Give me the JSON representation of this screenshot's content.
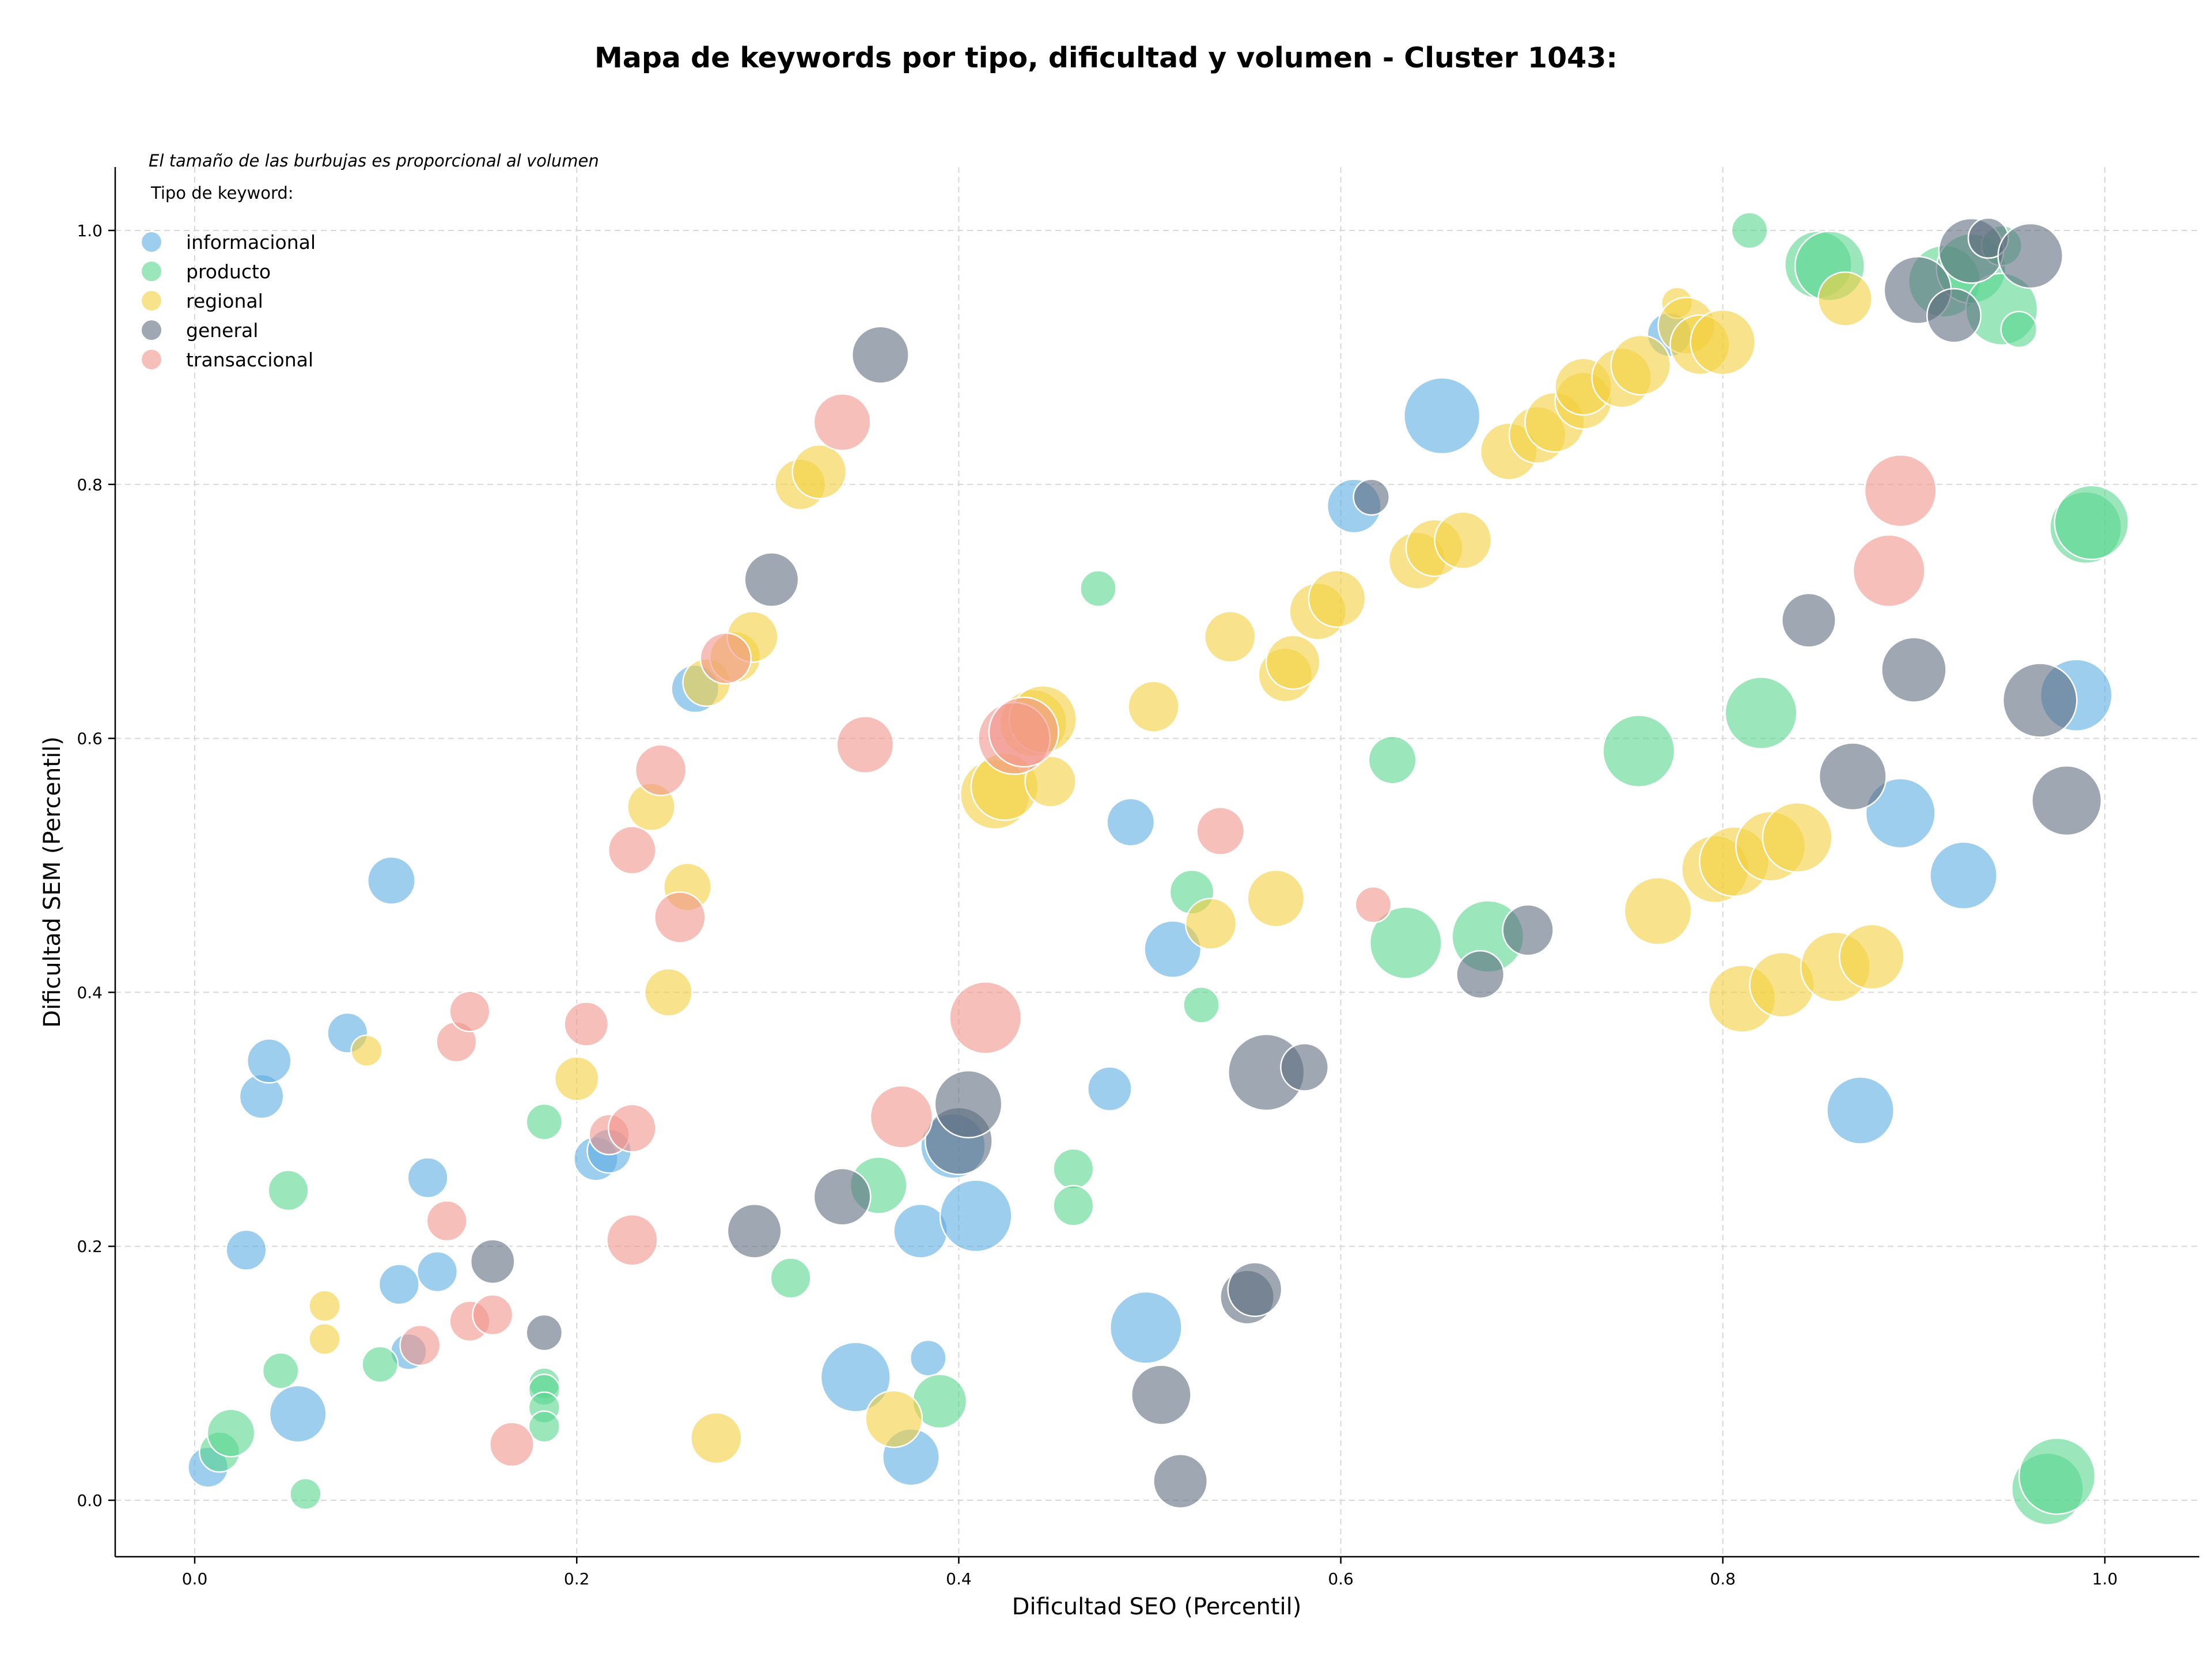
{
  "chart_data": {
    "type": "scatter",
    "title": "Mapa de keywords por tipo, dificultad y volumen - Cluster 1043:",
    "note": "El tamaño de las burbujas es proporcional al volumen",
    "xlabel": "Dificultad SEO (Percentil)",
    "ylabel": "Dificultad SEM (Percentil)",
    "xlim": [
      -0.04,
      1.05
    ],
    "ylim": [
      -0.045,
      1.05
    ],
    "xticks": [
      "0.0",
      "0.2",
      "0.4",
      "0.6",
      "0.8",
      "1.0"
    ],
    "yticks": [
      "0.0",
      "0.2",
      "0.4",
      "0.6",
      "0.8",
      "1.0"
    ],
    "grid": true,
    "legend": {
      "title": "Tipo de keyword:",
      "placement": "top-left"
    },
    "series": [
      {
        "name": "informacional",
        "color": "#5dade2",
        "points": [
          [
            0.007,
            0.026,
            0.5
          ],
          [
            0.027,
            0.197,
            0.5
          ],
          [
            0.035,
            0.318,
            0.6
          ],
          [
            0.039,
            0.346,
            0.6
          ],
          [
            0.054,
            0.068,
            1.0
          ],
          [
            0.08,
            0.368,
            0.5
          ],
          [
            0.103,
            0.488,
            0.7
          ],
          [
            0.107,
            0.17,
            0.5
          ],
          [
            0.112,
            0.117,
            0.4
          ],
          [
            0.122,
            0.254,
            0.5
          ],
          [
            0.127,
            0.18,
            0.5
          ],
          [
            0.21,
            0.269,
            0.6
          ],
          [
            0.217,
            0.275,
            0.6
          ],
          [
            0.262,
            0.639,
            0.7
          ],
          [
            0.346,
            0.097,
            1.5
          ],
          [
            0.375,
            0.034,
            1.0
          ],
          [
            0.38,
            0.212,
            0.9
          ],
          [
            0.384,
            0.112,
            0.4
          ],
          [
            0.397,
            0.279,
            1.3
          ],
          [
            0.409,
            0.224,
            1.6
          ],
          [
            0.479,
            0.324,
            0.6
          ],
          [
            0.49,
            0.534,
            0.7
          ],
          [
            0.498,
            0.136,
            1.6
          ],
          [
            0.512,
            0.434,
            1.0
          ],
          [
            0.607,
            0.783,
            0.9
          ],
          [
            0.653,
            0.854,
            1.8
          ],
          [
            0.772,
            0.918,
            0.6
          ],
          [
            0.872,
            0.307,
            1.4
          ],
          [
            0.893,
            0.541,
            1.5
          ],
          [
            0.926,
            0.492,
            1.4
          ],
          [
            0.985,
            0.634,
            1.6
          ]
        ]
      },
      {
        "name": "producto",
        "color": "#58d68d",
        "points": [
          [
            0.013,
            0.038,
            0.5
          ],
          [
            0.019,
            0.053,
            0.7
          ],
          [
            0.045,
            0.102,
            0.4
          ],
          [
            0.049,
            0.244,
            0.5
          ],
          [
            0.058,
            0.005,
            0.3
          ],
          [
            0.097,
            0.107,
            0.4
          ],
          [
            0.183,
            0.298,
            0.4
          ],
          [
            0.183,
            0.092,
            0.3
          ],
          [
            0.183,
            0.087,
            0.3
          ],
          [
            0.183,
            0.073,
            0.3
          ],
          [
            0.183,
            0.058,
            0.3
          ],
          [
            0.312,
            0.175,
            0.5
          ],
          [
            0.358,
            0.248,
            1.0
          ],
          [
            0.39,
            0.078,
            0.9
          ],
          [
            0.46,
            0.261,
            0.5
          ],
          [
            0.46,
            0.232,
            0.5
          ],
          [
            0.473,
            0.718,
            0.4
          ],
          [
            0.522,
            0.479,
            0.6
          ],
          [
            0.527,
            0.39,
            0.4
          ],
          [
            0.627,
            0.583,
            0.7
          ],
          [
            0.634,
            0.439,
            1.6
          ],
          [
            0.677,
            0.444,
            1.6
          ],
          [
            0.756,
            0.59,
            1.6
          ],
          [
            0.82,
            0.62,
            1.6
          ],
          [
            0.814,
            1.0,
            0.4
          ],
          [
            0.85,
            0.973,
            1.4
          ],
          [
            0.856,
            0.972,
            1.5
          ],
          [
            0.916,
            0.96,
            1.6
          ],
          [
            0.93,
            0.97,
            1.5
          ],
          [
            0.946,
            0.938,
            1.6
          ],
          [
            0.946,
            0.988,
            0.5
          ],
          [
            0.955,
            0.922,
            0.4
          ],
          [
            0.99,
            0.766,
            1.6
          ],
          [
            0.993,
            0.77,
            1.7
          ],
          [
            0.97,
            0.009,
            1.6
          ],
          [
            0.975,
            0.019,
            1.8
          ]
        ]
      },
      {
        "name": "regional",
        "color": "#f4d03f",
        "points": [
          [
            0.068,
            0.153,
            0.3
          ],
          [
            0.068,
            0.127,
            0.3
          ],
          [
            0.09,
            0.354,
            0.3
          ],
          [
            0.2,
            0.332,
            0.6
          ],
          [
            0.239,
            0.546,
            0.7
          ],
          [
            0.248,
            0.4,
            0.7
          ],
          [
            0.258,
            0.483,
            0.7
          ],
          [
            0.268,
            0.644,
            0.7
          ],
          [
            0.273,
            0.049,
            0.8
          ],
          [
            0.283,
            0.664,
            0.8
          ],
          [
            0.292,
            0.68,
            0.8
          ],
          [
            0.317,
            0.8,
            0.8
          ],
          [
            0.327,
            0.81,
            0.9
          ],
          [
            0.366,
            0.064,
            1.0
          ],
          [
            0.419,
            0.556,
            1.5
          ],
          [
            0.424,
            0.562,
            1.4
          ],
          [
            0.439,
            0.612,
            1.4
          ],
          [
            0.444,
            0.615,
            1.4
          ],
          [
            0.448,
            0.566,
            0.8
          ],
          [
            0.502,
            0.625,
            0.8
          ],
          [
            0.532,
            0.454,
            0.8
          ],
          [
            0.542,
            0.68,
            0.8
          ],
          [
            0.566,
            0.474,
            1.0
          ],
          [
            0.571,
            0.65,
            0.9
          ],
          [
            0.575,
            0.66,
            0.9
          ],
          [
            0.588,
            0.7,
            1.0
          ],
          [
            0.598,
            0.71,
            1.0
          ],
          [
            0.64,
            0.74,
            1.0
          ],
          [
            0.649,
            0.75,
            1.0
          ],
          [
            0.664,
            0.756,
            1.0
          ],
          [
            0.688,
            0.826,
            1.0
          ],
          [
            0.703,
            0.839,
            1.0
          ],
          [
            0.712,
            0.849,
            1.1
          ],
          [
            0.727,
            0.866,
            1.0
          ],
          [
            0.727,
            0.877,
            1.0
          ],
          [
            0.747,
            0.884,
            1.1
          ],
          [
            0.757,
            0.894,
            1.1
          ],
          [
            0.766,
            0.464,
            1.4
          ],
          [
            0.776,
            0.943,
            0.3
          ],
          [
            0.781,
            0.925,
            1.0
          ],
          [
            0.788,
            0.91,
            1.1
          ],
          [
            0.8,
            0.912,
            1.3
          ],
          [
            0.796,
            0.497,
            1.4
          ],
          [
            0.806,
            0.503,
            1.5
          ],
          [
            0.81,
            0.395,
            1.4
          ],
          [
            0.825,
            0.515,
            1.5
          ],
          [
            0.831,
            0.406,
            1.3
          ],
          [
            0.839,
            0.522,
            1.5
          ],
          [
            0.859,
            0.42,
            1.5
          ],
          [
            0.864,
            0.946,
            0.9
          ],
          [
            0.878,
            0.428,
            1.3
          ]
        ]
      },
      {
        "name": "general",
        "color": "#5d6d7e",
        "points": [
          [
            0.156,
            0.188,
            0.6
          ],
          [
            0.183,
            0.132,
            0.4
          ],
          [
            0.293,
            0.212,
            0.9
          ],
          [
            0.302,
            0.725,
            0.9
          ],
          [
            0.339,
            0.239,
            1.0
          ],
          [
            0.359,
            0.902,
            1.0
          ],
          [
            0.4,
            0.283,
            1.4
          ],
          [
            0.405,
            0.312,
            1.4
          ],
          [
            0.506,
            0.083,
            1.1
          ],
          [
            0.516,
            0.015,
            0.9
          ],
          [
            0.551,
            0.16,
            0.9
          ],
          [
            0.555,
            0.166,
            0.9
          ],
          [
            0.561,
            0.337,
            1.8
          ],
          [
            0.581,
            0.341,
            0.7
          ],
          [
            0.616,
            0.79,
            0.4
          ],
          [
            0.673,
            0.414,
            0.7
          ],
          [
            0.698,
            0.449,
            0.8
          ],
          [
            0.845,
            0.693,
            0.9
          ],
          [
            0.868,
            0.57,
            1.4
          ],
          [
            0.9,
            0.654,
            1.3
          ],
          [
            0.902,
            0.953,
            1.4
          ],
          [
            0.921,
            0.933,
            0.9
          ],
          [
            0.93,
            0.984,
            1.3
          ],
          [
            0.939,
            0.994,
            0.5
          ],
          [
            0.961,
            0.98,
            1.3
          ],
          [
            0.966,
            0.63,
            1.7
          ],
          [
            0.98,
            0.551,
            1.5
          ]
        ]
      },
      {
        "name": "transaccional",
        "color": "#f1948a",
        "points": [
          [
            0.118,
            0.122,
            0.5
          ],
          [
            0.132,
            0.22,
            0.5
          ],
          [
            0.137,
            0.361,
            0.5
          ],
          [
            0.144,
            0.385,
            0.5
          ],
          [
            0.144,
            0.141,
            0.5
          ],
          [
            0.156,
            0.146,
            0.5
          ],
          [
            0.166,
            0.044,
            0.6
          ],
          [
            0.205,
            0.375,
            0.6
          ],
          [
            0.217,
            0.288,
            0.5
          ],
          [
            0.229,
            0.293,
            0.7
          ],
          [
            0.229,
            0.205,
            0.8
          ],
          [
            0.229,
            0.512,
            0.7
          ],
          [
            0.244,
            0.575,
            0.8
          ],
          [
            0.254,
            0.459,
            0.8
          ],
          [
            0.278,
            0.663,
            0.8
          ],
          [
            0.339,
            0.849,
            1.0
          ],
          [
            0.351,
            0.595,
            1.0
          ],
          [
            0.37,
            0.302,
            1.2
          ],
          [
            0.414,
            0.38,
            1.6
          ],
          [
            0.429,
            0.6,
            1.6
          ],
          [
            0.434,
            0.605,
            1.5
          ],
          [
            0.537,
            0.527,
            0.7
          ],
          [
            0.617,
            0.469,
            0.4
          ],
          [
            0.887,
            0.732,
            1.6
          ],
          [
            0.893,
            0.795,
            1.6
          ]
        ]
      }
    ]
  }
}
